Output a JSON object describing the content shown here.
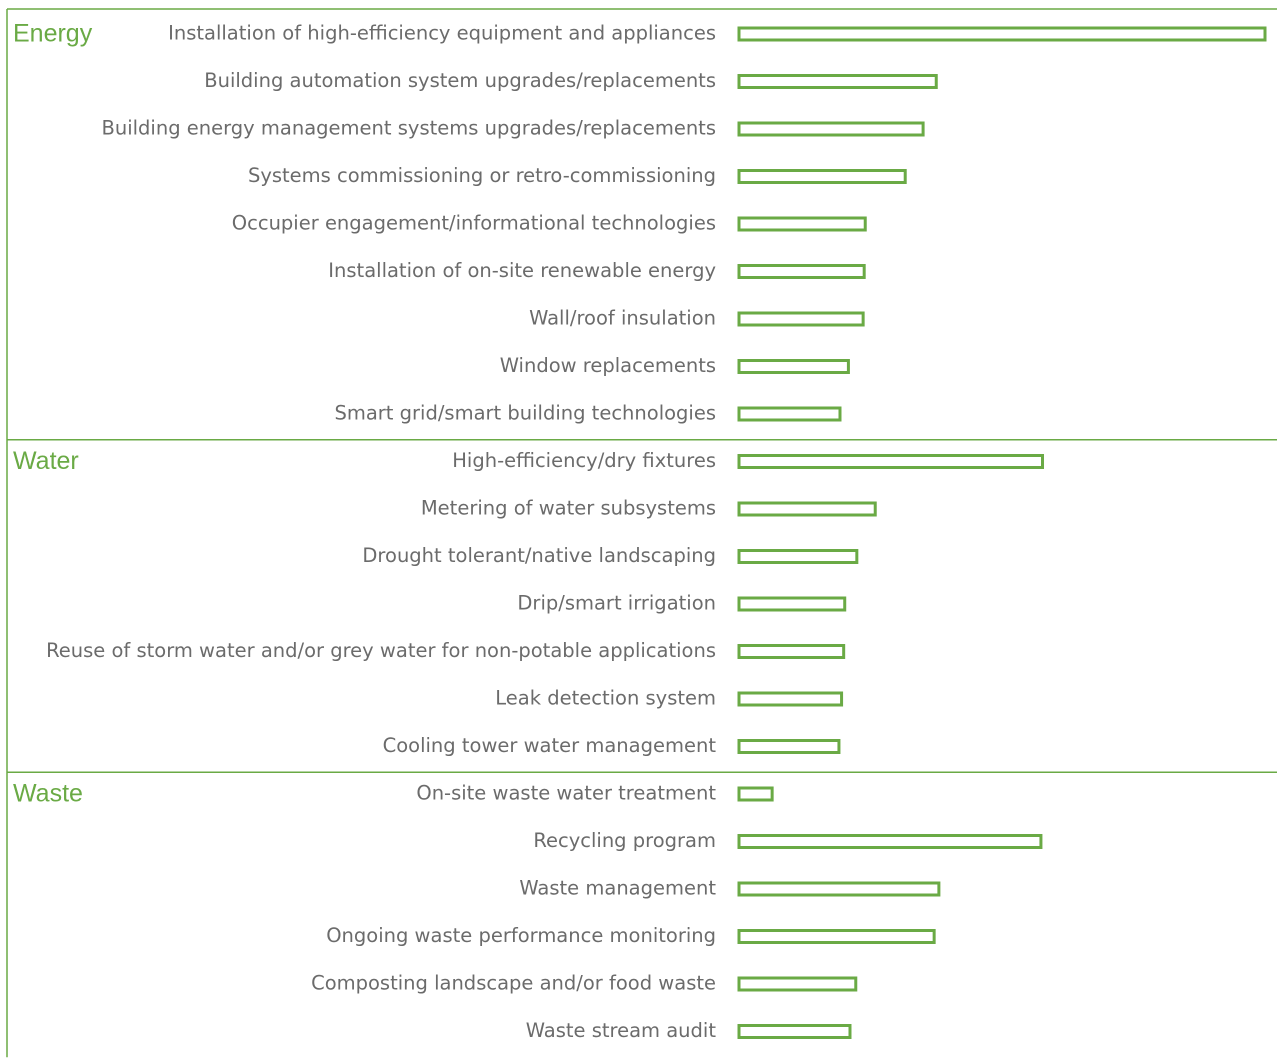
{
  "chart_data": {
    "type": "bar",
    "orientation": "horizontal",
    "bar_style": "outlined",
    "colors": {
      "accent": "#6AAA45",
      "label_text": "#6b6b6b",
      "background": "#ffffff"
    },
    "groups": [
      {
        "name": "Energy",
        "categories": [
          "Installation of high-efficiency equipment and appliances",
          "Building automation system upgrades/replacements",
          "Building energy management systems upgrades/replacements",
          "Systems commissioning or retro-commissioning",
          "Occupier engagement/informational technologies",
          "Installation of on-site renewable energy",
          "Wall/roof insulation",
          "Window replacements",
          "Smart grid/smart building technologies"
        ],
        "values": [
          100,
          37.5,
          35,
          31.6,
          24,
          23.8,
          23.6,
          20.8,
          19.2
        ]
      },
      {
        "name": "Water",
        "categories": [
          "High-efficiency/dry fixtures",
          "Metering of water subsystems",
          "Drought tolerant/native landscaping",
          "Drip/smart irrigation",
          "Reuse of storm water and/or grey water for non-potable applications",
          "Leak detection system",
          "Cooling tower water management"
        ],
        "values": [
          57.7,
          25.9,
          22.4,
          20.1,
          19.9,
          19.5,
          19
        ]
      },
      {
        "name": "Waste",
        "categories": [
          "On-site waste water treatment",
          "Recycling program",
          "Waste management",
          "Ongoing waste performance monitoring",
          "Composting landscape and/or food waste",
          "Waste stream audit"
        ],
        "values": [
          6.3,
          57.4,
          38,
          37.1,
          22.2,
          21.1
        ]
      }
    ],
    "xlim": [
      0,
      100
    ],
    "legend": "none",
    "grid": false
  }
}
